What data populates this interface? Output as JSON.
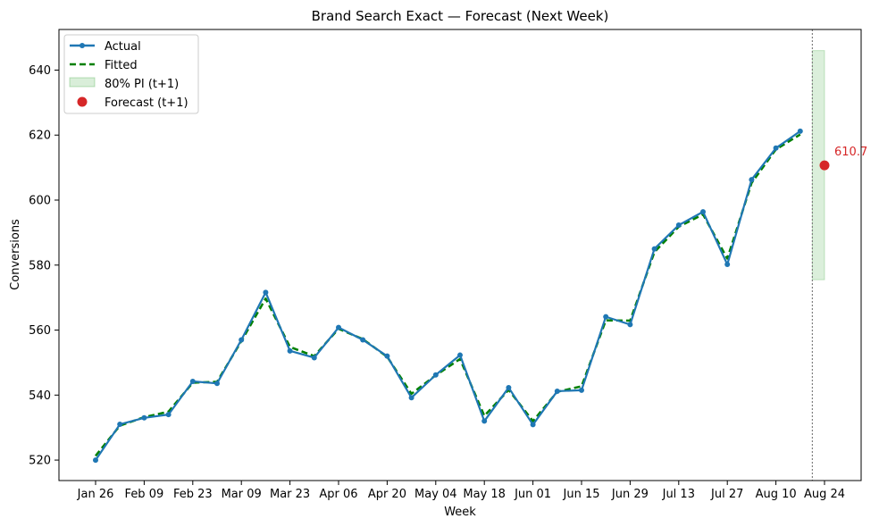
{
  "chart_data": {
    "type": "line",
    "title": "Brand Search Exact — Forecast (Next Week)",
    "xlabel": "Week",
    "ylabel": "Conversions",
    "ylim": [
      513.7,
      652.5
    ],
    "yticks": [
      520,
      540,
      560,
      580,
      600,
      620,
      640
    ],
    "x_tick_labels": [
      "Jan 26",
      "Feb 09",
      "Feb 23",
      "Mar 09",
      "Mar 23",
      "Apr 06",
      "Apr 20",
      "May 04",
      "May 18",
      "Jun 01",
      "Jun 15",
      "Jun 29",
      "Jul 13",
      "Jul 27",
      "Aug 10",
      "Aug 24"
    ],
    "legend": [
      "Actual",
      "Fitted",
      "80% PI (t+1)",
      "Forecast (t+1)"
    ],
    "legend_position": "upper left",
    "weeks": [
      "Jan 26",
      "Feb 02",
      "Feb 09",
      "Feb 16",
      "Feb 23",
      "Mar 02",
      "Mar 09",
      "Mar 16",
      "Mar 23",
      "Mar 30",
      "Apr 06",
      "Apr 13",
      "Apr 20",
      "Apr 27",
      "May 04",
      "May 11",
      "May 18",
      "May 25",
      "Jun 01",
      "Jun 08",
      "Jun 15",
      "Jun 22",
      "Jun 29",
      "Jul 06",
      "Jul 13",
      "Jul 20",
      "Jul 27",
      "Aug 03",
      "Aug 10",
      "Aug 17"
    ],
    "series": [
      {
        "name": "Actual",
        "color": "#1f77b4",
        "style": "solid-with-markers",
        "values": [
          520.0,
          531.0,
          533.0,
          534.0,
          544.2,
          543.6,
          557.0,
          571.6,
          553.6,
          551.5,
          560.8,
          557.0,
          552.0,
          539.2,
          546.2,
          552.3,
          532.0,
          542.3,
          530.9,
          541.2,
          541.5,
          564.1,
          561.7,
          585.0,
          592.3,
          596.4,
          580.2,
          606.3,
          616.0,
          621.2
        ]
      },
      {
        "name": "Fitted",
        "color": "#008000",
        "style": "dashed",
        "values": [
          521.3,
          530.6,
          533.2,
          534.9,
          543.8,
          544.1,
          556.6,
          569.7,
          554.8,
          552.0,
          560.4,
          557.2,
          551.8,
          540.4,
          546.1,
          551.1,
          533.6,
          541.6,
          532.0,
          541.0,
          542.7,
          563.0,
          562.9,
          584.0,
          591.8,
          595.6,
          582.0,
          605.3,
          615.6,
          620.2
        ]
      }
    ],
    "forecast": {
      "name": "Forecast (t+1)",
      "week": "Aug 24",
      "value": 610.7,
      "label": "610.7",
      "color": "#d62728"
    },
    "prediction_interval": {
      "name": "80% PI (t+1)",
      "lower": 575.5,
      "upper": 646.0,
      "color": "#2ca02c"
    },
    "forecast_divider": {
      "style": "dotted",
      "color": "#808080"
    }
  }
}
